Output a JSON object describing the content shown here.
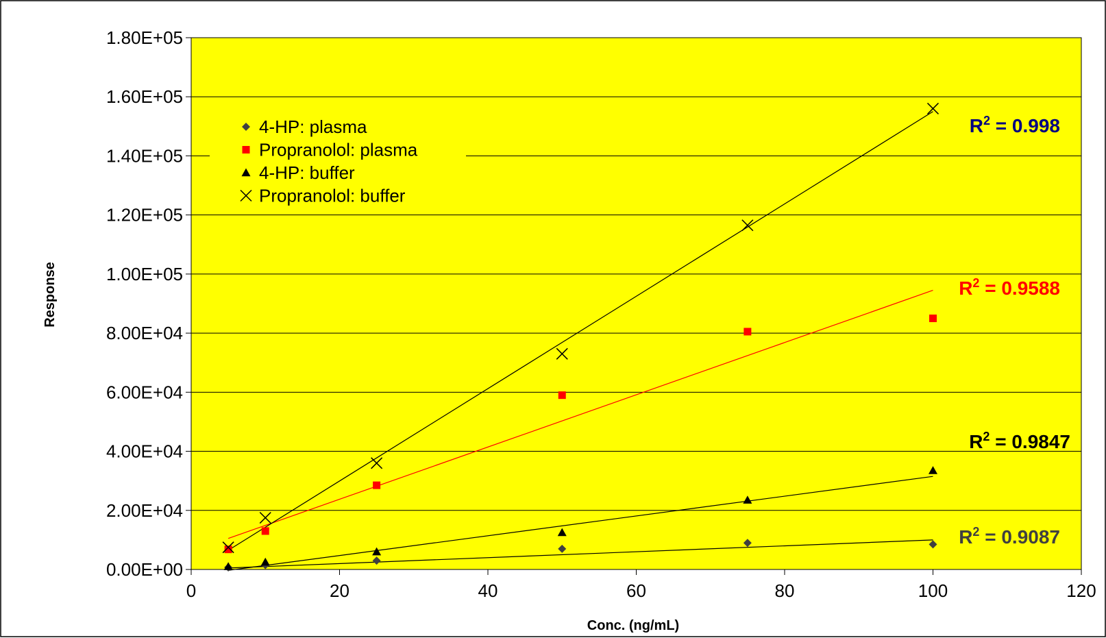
{
  "chart_data": {
    "type": "scatter",
    "title": "",
    "xlabel": "Conc. (ng/mL)",
    "ylabel": "Response",
    "xlim": [
      0,
      120
    ],
    "ylim": [
      0,
      180000
    ],
    "x_ticks": [
      0,
      20,
      40,
      60,
      80,
      100,
      120
    ],
    "x_tick_labels": [
      "0",
      "20",
      "40",
      "60",
      "80",
      "100",
      "120"
    ],
    "y_ticks": [
      0,
      20000,
      40000,
      60000,
      80000,
      100000,
      120000,
      140000,
      160000,
      180000
    ],
    "y_tick_labels": [
      "0.00E+00",
      "2.00E+04",
      "4.00E+04",
      "6.00E+04",
      "8.00E+04",
      "1.00E+05",
      "1.20E+05",
      "1.40E+05",
      "1.60E+05",
      "1.80E+05"
    ],
    "grid": "horizontal",
    "plot_background": "#ffff00",
    "legend_position": "top-left",
    "series": [
      {
        "name": "4-HP: plasma",
        "marker": "diamond",
        "color": "#404040",
        "x": [
          5,
          10,
          25,
          50,
          75,
          100
        ],
        "y": [
          700,
          1500,
          3000,
          7000,
          9000,
          8500
        ],
        "trendline": {
          "y_start": 500,
          "y_end": 10000
        },
        "r2_label": {
          "prefix": "R",
          "sup": "2",
          "value": " = 0.9087",
          "color": "#404040"
        }
      },
      {
        "name": "Propranolol: plasma",
        "marker": "square",
        "color": "#ff0000",
        "x": [
          5,
          10,
          25,
          50,
          75,
          100
        ],
        "y": [
          6800,
          13000,
          28500,
          59000,
          80500,
          85000
        ],
        "trendline": {
          "y_start": 10500,
          "y_end": 94500
        },
        "r2_label": {
          "prefix": "R",
          "sup": "2",
          "value": " = 0.9588",
          "color": "#ff0000"
        }
      },
      {
        "name": "4-HP: buffer",
        "marker": "triangle",
        "color": "#000000",
        "x": [
          5,
          10,
          25,
          50,
          75,
          100
        ],
        "y": [
          1000,
          2500,
          6000,
          12500,
          23500,
          33500
        ],
        "trendline": {
          "y_start": -300,
          "y_end": 31500
        },
        "r2_label": {
          "prefix": "R",
          "sup": "2",
          "value": " = 0.9847",
          "color": "#000000"
        }
      },
      {
        "name": "Propranolol: buffer",
        "marker": "x",
        "color": "#000000",
        "x": [
          5,
          10,
          25,
          50,
          75,
          100
        ],
        "y": [
          7500,
          17500,
          36000,
          73000,
          116500,
          156000
        ],
        "trendline": {
          "y_start": 6500,
          "y_end": 155000
        },
        "r2_label": {
          "prefix": "R",
          "sup": "2",
          "value": " = 0.998",
          "color": "#000080"
        }
      }
    ]
  }
}
